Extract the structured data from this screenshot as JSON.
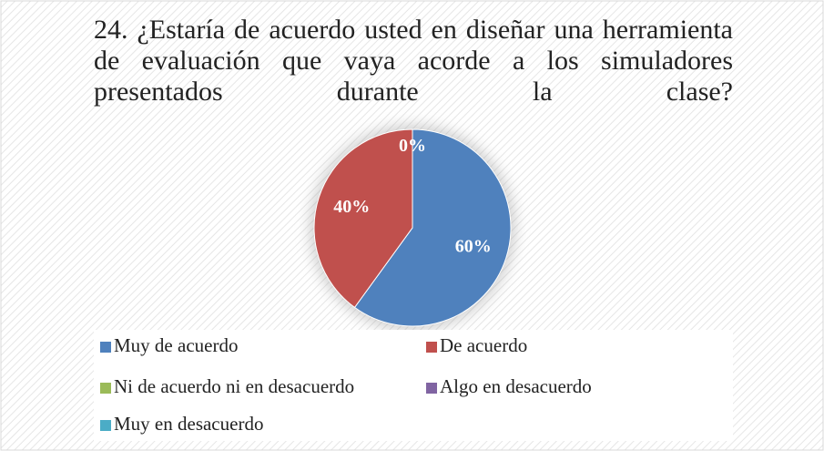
{
  "chart_data": {
    "type": "pie",
    "title": "24. ¿Estaría de acuerdo usted en diseñar una herramienta de evaluación que vaya acorde a los simuladores presentados durante la clase?",
    "categories": [
      "Muy de acuerdo",
      "De acuerdo",
      "Ni de acuerdo ni en desacuerdo",
      "Algo en desacuerdo",
      "Muy en desacuerdo"
    ],
    "values": [
      60,
      40,
      0,
      0,
      0
    ],
    "value_labels": [
      "60%",
      "40%",
      "0%",
      null,
      null
    ],
    "colors": [
      "#4f81bd",
      "#c0504d",
      "#9bbb59",
      "#8064a2",
      "#4bacc6"
    ],
    "legend": "bottom"
  }
}
